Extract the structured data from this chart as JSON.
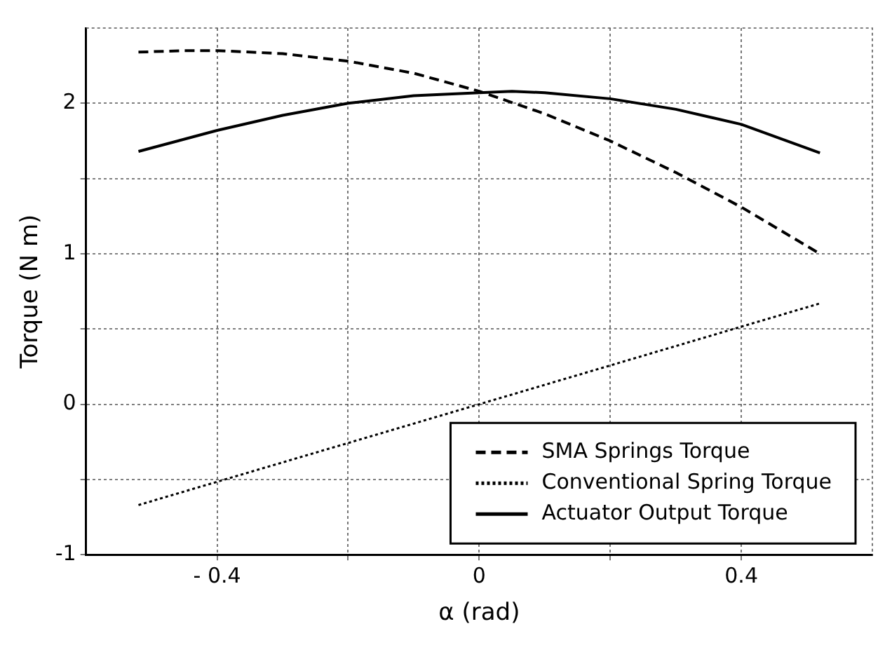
{
  "chart_data": {
    "type": "line",
    "xlabel": "α (rad)",
    "ylabel": "Torque (N m)",
    "xlim": [
      -0.6,
      0.6
    ],
    "xticks": [
      {
        "value": -0.4,
        "label": "- 0.4"
      },
      {
        "value": -0.2,
        "label": null
      },
      0,
      {
        "value": 0.2,
        "label": null
      },
      0.4
    ],
    "ylim": [
      -1,
      2.5
    ],
    "yticks": [
      -1,
      {
        "value": -0.5,
        "label": null
      },
      0,
      {
        "value": 0.5,
        "label": null
      },
      1,
      {
        "value": 1.5,
        "label": null
      },
      2
    ],
    "grid": true,
    "legend": "bottom right",
    "marker": "none",
    "series": [
      {
        "name": "SMA Springs Torque",
        "color": "#000000",
        "line_style": "dashed",
        "x": [
          -0.52,
          -0.45,
          -0.4,
          -0.3,
          -0.2,
          -0.1,
          0,
          0.1,
          0.2,
          0.3,
          0.4,
          0.52
        ],
        "values": [
          2.34,
          2.35,
          2.35,
          2.33,
          2.28,
          2.2,
          2.08,
          1.93,
          1.75,
          1.54,
          1.31,
          1.0
        ]
      },
      {
        "name": "Conventional Spring Torque",
        "color": "#000000",
        "line_style": "dotted",
        "x": [
          -0.52,
          0,
          0.52
        ],
        "values": [
          -0.67,
          0,
          0.67
        ]
      },
      {
        "name": "Actuator Output Torque",
        "color": "#000000",
        "line_style": "solid",
        "x": [
          -0.52,
          -0.4,
          -0.3,
          -0.2,
          -0.1,
          0,
          0.05,
          0.1,
          0.2,
          0.3,
          0.4,
          0.52
        ],
        "values": [
          1.68,
          1.82,
          1.92,
          2.0,
          2.05,
          2.07,
          2.08,
          2.07,
          2.03,
          1.96,
          1.86,
          1.67
        ]
      }
    ]
  }
}
